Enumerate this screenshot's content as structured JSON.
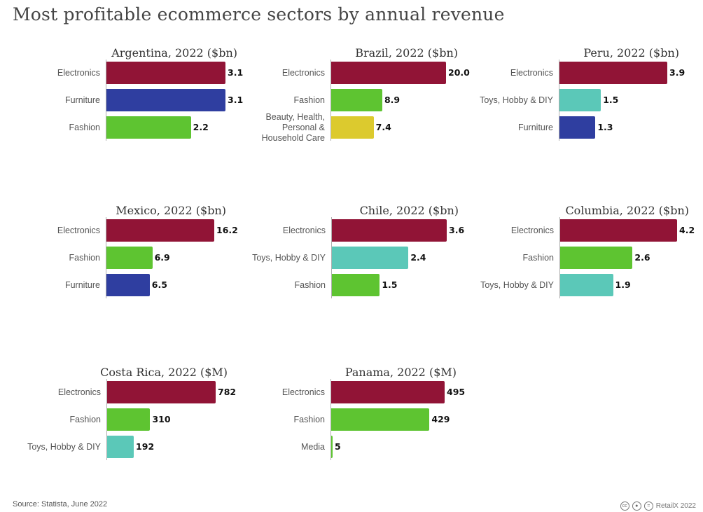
{
  "title": "Most profitable ecommerce sectors by annual revenue",
  "source": "Source: Statista, June 2022",
  "credit": "RetailX 2022",
  "colors": {
    "Electronics": "#911436",
    "Furniture": "#2f3ea0",
    "Fashion": "#5ec431",
    "Beauty, Health, Personal & Household Care": "#dcca2e",
    "Toys, Hobby & DIY": "#5bc8b8",
    "Media": "#5ec431"
  },
  "chart_data": [
    {
      "type": "bar",
      "title": "Argentina, 2022 ($bn)",
      "categories": [
        "Electronics",
        "Furniture",
        "Fashion"
      ],
      "values": [
        3.1,
        3.1,
        2.2
      ],
      "labels": [
        "3.1",
        "3.1",
        "2.2"
      ],
      "xlim": [
        0,
        3.1
      ]
    },
    {
      "type": "bar",
      "title": "Brazil, 2022 ($bn)",
      "categories": [
        "Electronics",
        "Fashion",
        "Beauty, Health, Personal & Household Care"
      ],
      "category_lines": [
        [
          "Electronics"
        ],
        [
          "Fashion"
        ],
        [
          "Beauty, Health,",
          "Personal &",
          "Household Care"
        ]
      ],
      "values": [
        20.0,
        8.9,
        7.4
      ],
      "labels": [
        "20.0",
        "8.9",
        "7.4"
      ],
      "xlim": [
        0,
        20.0
      ]
    },
    {
      "type": "bar",
      "title": "Peru, 2022 ($bn)",
      "categories": [
        "Electronics",
        "Toys, Hobby & DIY",
        "Furniture"
      ],
      "values": [
        3.9,
        1.5,
        1.3
      ],
      "labels": [
        "3.9",
        "1.5",
        "1.3"
      ],
      "xlim": [
        0,
        3.9
      ]
    },
    {
      "type": "bar",
      "title": "Mexico, 2022 ($bn)",
      "categories": [
        "Electronics",
        "Fashion",
        "Furniture"
      ],
      "values": [
        16.2,
        6.9,
        6.5
      ],
      "labels": [
        "16.2",
        "6.9",
        "6.5"
      ],
      "xlim": [
        0,
        16.2
      ]
    },
    {
      "type": "bar",
      "title": "Chile, 2022 ($bn)",
      "categories": [
        "Electronics",
        "Toys, Hobby & DIY",
        "Fashion"
      ],
      "values": [
        3.6,
        2.4,
        1.5
      ],
      "labels": [
        "3.6",
        "2.4",
        "1.5"
      ],
      "xlim": [
        0,
        3.6
      ]
    },
    {
      "type": "bar",
      "title": "Columbia, 2022 ($bn)",
      "categories": [
        "Electronics",
        "Fashion",
        "Toys, Hobby & DIY"
      ],
      "values": [
        4.2,
        2.6,
        1.9
      ],
      "labels": [
        "4.2",
        "2.6",
        "1.9"
      ],
      "xlim": [
        0,
        4.2
      ]
    },
    {
      "type": "bar",
      "title": "Costa Rica, 2022 ($M)",
      "categories": [
        "Electronics",
        "Fashion",
        "Toys, Hobby & DIY"
      ],
      "values": [
        782,
        310,
        192
      ],
      "labels": [
        "782",
        "310",
        "192"
      ],
      "xlim": [
        0,
        782
      ]
    },
    {
      "type": "bar",
      "title": "Panama, 2022 ($M)",
      "categories": [
        "Electronics",
        "Fashion",
        "Media"
      ],
      "values": [
        495,
        429,
        5
      ],
      "labels": [
        "495",
        "429",
        "5"
      ],
      "xlim": [
        0,
        495
      ]
    }
  ]
}
